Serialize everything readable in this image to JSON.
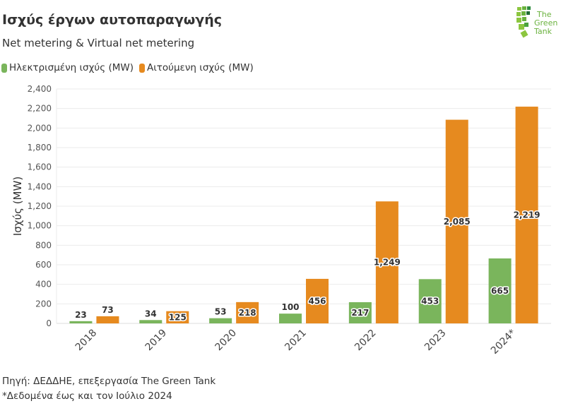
{
  "title": "Ισχύς έργων αυτοπαραγωγής",
  "subtitle": "Net metering & Virtual net metering",
  "logo": {
    "text": "The Green Tank",
    "color": "#6ab23e"
  },
  "footer": {
    "source": "Πηγή: ΔΕΔΔΗΕ, επεξεργασία The Green Tank",
    "note": "*Δεδομένα έως και τον Ιούλιο 2024"
  },
  "chart_data": {
    "type": "bar",
    "categories": [
      "2018",
      "2019",
      "2020",
      "2021",
      "2022",
      "2023",
      "2024*"
    ],
    "series": [
      {
        "name": "Ηλεκτρισμένη ισχύς (MW)",
        "color": "#7ab55c",
        "values": [
          23,
          34,
          53,
          100,
          217,
          453,
          665
        ]
      },
      {
        "name": "Αιτούμενη ισχύς (MW)",
        "color": "#e68a1f",
        "values": [
          73,
          125,
          218,
          456,
          1249,
          2085,
          2219
        ]
      }
    ],
    "ylabel": "Ισχύς (MW)",
    "ylim": [
      0,
      2400
    ],
    "yticks": [
      "0",
      "200",
      "400",
      "600",
      "800",
      "1,000",
      "1,200",
      "1,400",
      "1,600",
      "1,800",
      "2,000",
      "2,200",
      "2,400"
    ],
    "data_labels": [
      [
        "23",
        "34",
        "53",
        "100",
        "217",
        "453",
        "665"
      ],
      [
        "73",
        "125",
        "218",
        "456",
        "1,249",
        "2,085",
        "2,219"
      ]
    ],
    "grid": true,
    "legend": "top-left"
  }
}
